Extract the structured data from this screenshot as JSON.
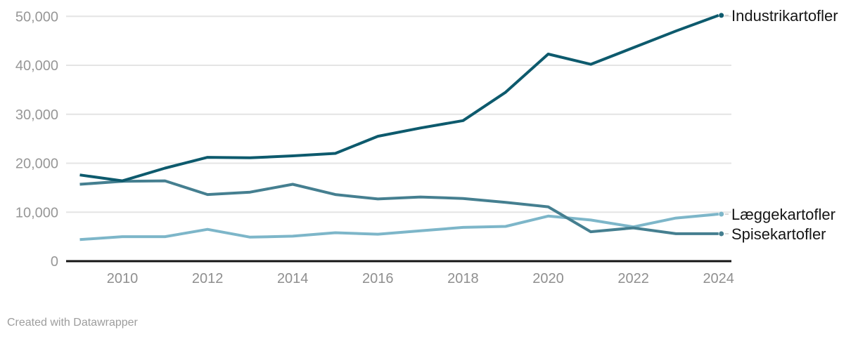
{
  "chart_data": {
    "type": "line",
    "x": [
      2009,
      2010,
      2011,
      2012,
      2013,
      2014,
      2015,
      2016,
      2017,
      2018,
      2019,
      2020,
      2021,
      2022,
      2023,
      2024
    ],
    "series": [
      {
        "name": "Industrikartofler",
        "color": "#0d5a6d",
        "values": [
          17600,
          16400,
          19000,
          21200,
          21100,
          21500,
          22000,
          25500,
          27200,
          28700,
          34500,
          42300,
          40200,
          43600,
          47000,
          50200
        ]
      },
      {
        "name": "Læggekartofler",
        "color": "#7db6c9",
        "values": [
          4400,
          5000,
          5000,
          6500,
          4900,
          5100,
          5800,
          5500,
          6200,
          6900,
          7100,
          9200,
          8400,
          7000,
          8800,
          9600
        ]
      },
      {
        "name": "Spisekartofler",
        "color": "#457f90",
        "values": [
          15700,
          16300,
          16400,
          13600,
          14100,
          15700,
          13600,
          12700,
          13100,
          12800,
          12000,
          11100,
          6000,
          6800,
          5600,
          5600
        ]
      }
    ],
    "ylim": [
      0,
      50000
    ],
    "yticks": [
      {
        "value": 0,
        "label": "0"
      },
      {
        "value": 10000,
        "label": "10,000"
      },
      {
        "value": 20000,
        "label": "20,000"
      },
      {
        "value": 30000,
        "label": "30,000"
      },
      {
        "value": 40000,
        "label": "40,000"
      },
      {
        "value": 50000,
        "label": "50,000"
      }
    ],
    "xticks": [
      2010,
      2012,
      2014,
      2016,
      2018,
      2020,
      2022,
      2024
    ],
    "grid": "horizontal-only",
    "legend_position": "right-of-line-ends",
    "title": "",
    "xlabel": "",
    "ylabel": ""
  },
  "colors": {
    "gridline": "#e4e4e4",
    "baseline": "#141414",
    "connector": "#cccccc",
    "tick_text": "#979797",
    "label_text": "#161616"
  },
  "footer": {
    "credit": "Created with Datawrapper"
  }
}
